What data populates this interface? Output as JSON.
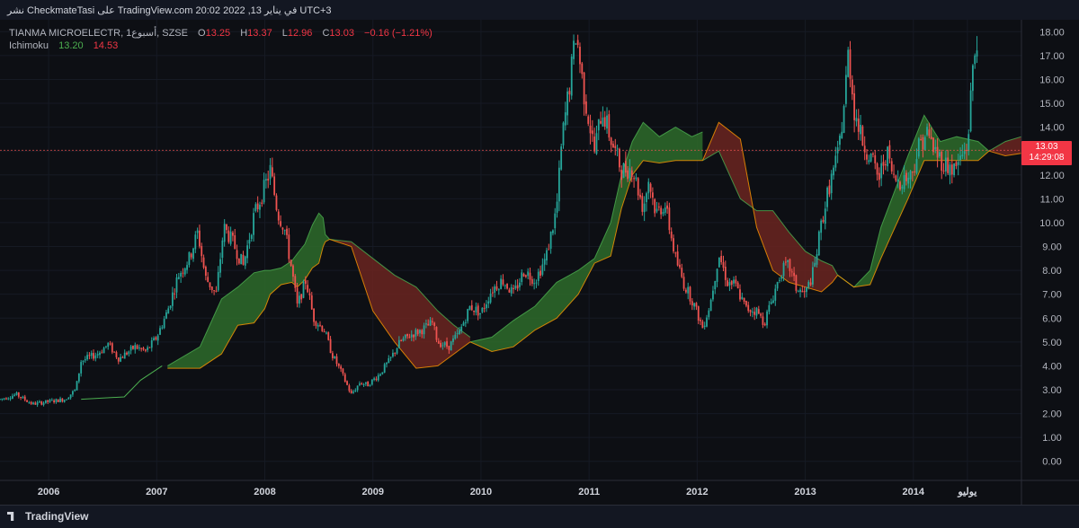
{
  "header": {
    "title": "نشر CheckmateTasi على TradingView.com 20:02 2022 ,13 في يناير UTC+3"
  },
  "legend": {
    "symbol": "TIANMA MICROELECTR, 1أسبوع, SZSE",
    "o_label": "O",
    "o": "13.25",
    "h_label": "H",
    "h": "13.37",
    "l_label": "L",
    "l": "12.96",
    "c_label": "C",
    "c": "13.03",
    "change": "−0.16 (−1.21%)",
    "indicator": "Ichimoku",
    "ind_v1": "13.20",
    "ind_v2": "14.53"
  },
  "price_tag": {
    "price": "13.03",
    "countdown": "14:29:08"
  },
  "footer": {
    "brand": "TradingView"
  },
  "colors": {
    "background": "#0d0f14",
    "up": "#26a69a",
    "down": "#ef5350",
    "cloud_bull": "#2e6b2a",
    "cloud_bear": "#6b2420",
    "span_a": "#4caf50",
    "span_b": "#ff9800",
    "lagging": "#4caf50"
  },
  "chart_data": {
    "type": "candlestick",
    "title": "TIANMA MICROELECTR, 1أسبوع, SZSE",
    "x_labels": [
      "2006",
      "2007",
      "2008",
      "2009",
      "2010",
      "2011",
      "2012",
      "2013",
      "2014",
      "يوليو"
    ],
    "x_label_positions": [
      2006.0,
      2007.0,
      2008.0,
      2009.0,
      2010.0,
      2011.0,
      2012.0,
      2013.0,
      2014.0,
      2014.5
    ],
    "x_range": [
      2005.55,
      2015.0
    ],
    "y_ticks": [
      "0.00",
      "1.00",
      "2.00",
      "3.00",
      "4.00",
      "5.00",
      "6.00",
      "7.00",
      "8.00",
      "9.00",
      "10.00",
      "11.00",
      "12.00",
      "13.00",
      "14.00",
      "15.00",
      "16.00",
      "17.00",
      "18.00"
    ],
    "y_range": [
      -0.8,
      18.5
    ],
    "price_series": [
      [
        2005.55,
        2.6
      ],
      [
        2005.7,
        2.8
      ],
      [
        2005.85,
        2.4
      ],
      [
        2006.0,
        2.5
      ],
      [
        2006.15,
        2.6
      ],
      [
        2006.25,
        3.0
      ],
      [
        2006.3,
        4.2
      ],
      [
        2006.45,
        4.5
      ],
      [
        2006.55,
        4.9
      ],
      [
        2006.65,
        4.3
      ],
      [
        2006.8,
        4.8
      ],
      [
        2006.9,
        4.6
      ],
      [
        2007.0,
        5.2
      ],
      [
        2007.1,
        6.3
      ],
      [
        2007.2,
        7.8
      ],
      [
        2007.3,
        8.5
      ],
      [
        2007.38,
        9.6
      ],
      [
        2007.45,
        7.7
      ],
      [
        2007.55,
        7.0
      ],
      [
        2007.62,
        9.8
      ],
      [
        2007.7,
        9.2
      ],
      [
        2007.8,
        8.2
      ],
      [
        2007.9,
        10.3
      ],
      [
        2008.0,
        11.5
      ],
      [
        2008.05,
        12.2
      ],
      [
        2008.12,
        10.4
      ],
      [
        2008.18,
        9.8
      ],
      [
        2008.25,
        8.0
      ],
      [
        2008.3,
        6.5
      ],
      [
        2008.38,
        7.6
      ],
      [
        2008.45,
        6.0
      ],
      [
        2008.55,
        5.5
      ],
      [
        2008.62,
        4.5
      ],
      [
        2008.7,
        3.8
      ],
      [
        2008.8,
        2.8
      ],
      [
        2008.88,
        3.3
      ],
      [
        2008.95,
        3.2
      ],
      [
        2009.05,
        3.6
      ],
      [
        2009.15,
        4.2
      ],
      [
        2009.25,
        5.0
      ],
      [
        2009.35,
        5.3
      ],
      [
        2009.45,
        5.5
      ],
      [
        2009.55,
        5.8
      ],
      [
        2009.6,
        5.0
      ],
      [
        2009.7,
        4.8
      ],
      [
        2009.8,
        5.4
      ],
      [
        2009.9,
        6.5
      ],
      [
        2010.0,
        6.2
      ],
      [
        2010.1,
        7.2
      ],
      [
        2010.2,
        7.6
      ],
      [
        2010.3,
        7.0
      ],
      [
        2010.4,
        8.0
      ],
      [
        2010.5,
        7.6
      ],
      [
        2010.6,
        8.5
      ],
      [
        2010.7,
        10.6
      ],
      [
        2010.75,
        13.5
      ],
      [
        2010.82,
        15.8
      ],
      [
        2010.88,
        18.0
      ],
      [
        2010.95,
        15.5
      ],
      [
        2011.05,
        13.0
      ],
      [
        2011.12,
        14.8
      ],
      [
        2011.2,
        13.5
      ],
      [
        2011.3,
        12.2
      ],
      [
        2011.4,
        12.3
      ],
      [
        2011.5,
        10.6
      ],
      [
        2011.55,
        11.8
      ],
      [
        2011.62,
        10.4
      ],
      [
        2011.7,
        10.8
      ],
      [
        2011.8,
        8.5
      ],
      [
        2011.88,
        7.4
      ],
      [
        2011.95,
        6.8
      ],
      [
        2012.05,
        5.6
      ],
      [
        2012.12,
        6.6
      ],
      [
        2012.2,
        8.7
      ],
      [
        2012.28,
        7.5
      ],
      [
        2012.35,
        7.4
      ],
      [
        2012.45,
        6.4
      ],
      [
        2012.55,
        6.3
      ],
      [
        2012.62,
        5.8
      ],
      [
        2012.7,
        6.9
      ],
      [
        2012.78,
        8.0
      ],
      [
        2012.85,
        8.2
      ],
      [
        2012.92,
        7.2
      ],
      [
        2013.0,
        7.0
      ],
      [
        2013.08,
        8.0
      ],
      [
        2013.15,
        10.0
      ],
      [
        2013.22,
        11.5
      ],
      [
        2013.3,
        12.8
      ],
      [
        2013.35,
        14.5
      ],
      [
        2013.4,
        17.2
      ],
      [
        2013.45,
        14.8
      ],
      [
        2013.52,
        13.5
      ],
      [
        2013.6,
        12.8
      ],
      [
        2013.68,
        11.8
      ],
      [
        2013.75,
        13.0
      ],
      [
        2013.82,
        11.8
      ],
      [
        2013.9,
        11.8
      ],
      [
        2013.98,
        12.0
      ],
      [
        2014.05,
        13.2
      ],
      [
        2014.12,
        13.8
      ],
      [
        2014.2,
        13.0
      ],
      [
        2014.28,
        12.5
      ],
      [
        2014.38,
        12.2
      ],
      [
        2014.45,
        12.8
      ],
      [
        2014.5,
        13.2
      ],
      [
        2014.55,
        16.5
      ],
      [
        2014.6,
        18.2
      ]
    ],
    "span_a_bull_cloud": [
      [
        [
          2007.1,
          4.0
        ],
        [
          2007.4,
          4.8
        ],
        [
          2007.6,
          6.8
        ],
        [
          2007.75,
          7.3
        ],
        [
          2007.9,
          7.9
        ],
        [
          2008.0,
          8.0
        ],
        [
          2008.05,
          8.0
        ],
        [
          2008.15,
          8.1
        ],
        [
          2008.25,
          8.4
        ],
        [
          2008.3,
          8.7
        ],
        [
          2008.37,
          9.1
        ],
        [
          2008.44,
          9.9
        ],
        [
          2008.5,
          10.4
        ],
        [
          2008.54,
          10.2
        ],
        [
          2008.56,
          9.5
        ],
        [
          2008.6,
          9.3
        ]
      ],
      [
        [
          2007.1,
          3.9
        ],
        [
          2007.4,
          3.9
        ],
        [
          2007.6,
          4.5
        ],
        [
          2007.75,
          5.7
        ],
        [
          2007.9,
          5.8
        ],
        [
          2008.0,
          6.4
        ],
        [
          2008.05,
          7.0
        ],
        [
          2008.15,
          7.4
        ],
        [
          2008.25,
          7.5
        ],
        [
          2008.3,
          7.3
        ],
        [
          2008.37,
          7.6
        ],
        [
          2008.44,
          8.1
        ],
        [
          2008.5,
          8.3
        ],
        [
          2008.54,
          9.0
        ],
        [
          2008.56,
          9.2
        ],
        [
          2008.6,
          9.3
        ]
      ]
    ],
    "span_a_bear_cloud_1": [
      [
        [
          2008.6,
          9.3
        ],
        [
          2008.8,
          9.2
        ],
        [
          2009.0,
          8.5
        ],
        [
          2009.2,
          7.8
        ],
        [
          2009.4,
          7.3
        ],
        [
          2009.6,
          6.3
        ],
        [
          2009.75,
          5.7
        ],
        [
          2009.9,
          5.2
        ]
      ],
      [
        [
          2008.6,
          9.3
        ],
        [
          2008.8,
          9.0
        ],
        [
          2009.0,
          6.3
        ],
        [
          2009.2,
          5.0
        ],
        [
          2009.4,
          3.9
        ],
        [
          2009.6,
          4.0
        ],
        [
          2009.75,
          4.5
        ],
        [
          2009.9,
          5.0
        ]
      ]
    ],
    "bull_cloud_2": [
      [
        [
          2009.9,
          5.0
        ],
        [
          2010.1,
          5.2
        ],
        [
          2010.3,
          5.9
        ],
        [
          2010.5,
          6.5
        ],
        [
          2010.7,
          7.5
        ],
        [
          2010.9,
          8.0
        ],
        [
          2011.05,
          8.5
        ],
        [
          2011.2,
          10.0
        ],
        [
          2011.3,
          12.0
        ],
        [
          2011.4,
          13.4
        ],
        [
          2011.5,
          14.2
        ],
        [
          2011.65,
          13.6
        ],
        [
          2011.8,
          14.0
        ],
        [
          2011.95,
          13.6
        ],
        [
          2012.05,
          13.8
        ]
      ],
      [
        [
          2009.9,
          5.0
        ],
        [
          2010.1,
          4.6
        ],
        [
          2010.3,
          4.8
        ],
        [
          2010.5,
          5.5
        ],
        [
          2010.7,
          6.0
        ],
        [
          2010.9,
          7.0
        ],
        [
          2011.05,
          8.3
        ],
        [
          2011.2,
          8.6
        ],
        [
          2011.3,
          10.6
        ],
        [
          2011.4,
          12.0
        ],
        [
          2011.5,
          12.6
        ],
        [
          2011.65,
          12.5
        ],
        [
          2011.8,
          12.6
        ],
        [
          2011.95,
          12.6
        ],
        [
          2012.05,
          12.6
        ]
      ]
    ],
    "bear_cloud_2": [
      [
        [
          2012.05,
          12.6
        ],
        [
          2012.2,
          13.0
        ],
        [
          2012.4,
          11.0
        ],
        [
          2012.55,
          10.5
        ],
        [
          2012.7,
          10.5
        ],
        [
          2012.85,
          9.6
        ],
        [
          2013.0,
          8.8
        ],
        [
          2013.15,
          8.4
        ],
        [
          2013.25,
          8.2
        ],
        [
          2013.3,
          7.8
        ]
      ],
      [
        [
          2012.05,
          12.6
        ],
        [
          2012.2,
          14.2
        ],
        [
          2012.4,
          13.5
        ],
        [
          2012.55,
          9.8
        ],
        [
          2012.7,
          8.0
        ],
        [
          2012.85,
          7.5
        ],
        [
          2013.0,
          7.3
        ],
        [
          2013.15,
          7.1
        ],
        [
          2013.25,
          7.5
        ],
        [
          2013.3,
          7.8
        ]
      ]
    ],
    "bull_cloud_3": [
      [
        [
          2013.3,
          7.8
        ],
        [
          2013.45,
          7.3
        ],
        [
          2013.6,
          8.0
        ],
        [
          2013.7,
          9.8
        ],
        [
          2013.8,
          11.0
        ],
        [
          2013.95,
          12.8
        ],
        [
          2014.1,
          14.5
        ],
        [
          2014.25,
          13.4
        ],
        [
          2014.4,
          13.6
        ],
        [
          2014.6,
          13.4
        ],
        [
          2014.7,
          13.0
        ]
      ],
      [
        [
          2013.3,
          7.8
        ],
        [
          2013.45,
          7.3
        ],
        [
          2013.6,
          7.4
        ],
        [
          2013.7,
          8.5
        ],
        [
          2013.8,
          9.5
        ],
        [
          2013.95,
          11.0
        ],
        [
          2014.1,
          12.6
        ],
        [
          2014.25,
          12.6
        ],
        [
          2014.4,
          12.6
        ],
        [
          2014.6,
          12.6
        ],
        [
          2014.7,
          13.0
        ]
      ]
    ],
    "bear_cloud_3": [
      [
        [
          2014.7,
          13.0
        ],
        [
          2014.85,
          13.4
        ],
        [
          2015.0,
          13.6
        ]
      ],
      [
        [
          2014.7,
          13.0
        ],
        [
          2014.85,
          12.8
        ],
        [
          2015.0,
          12.9
        ]
      ]
    ],
    "lagging_line_start": [
      [
        2006.3,
        2.6
      ],
      [
        2006.7,
        2.7
      ],
      [
        2006.85,
        3.4
      ],
      [
        2007.05,
        4.0
      ]
    ]
  }
}
